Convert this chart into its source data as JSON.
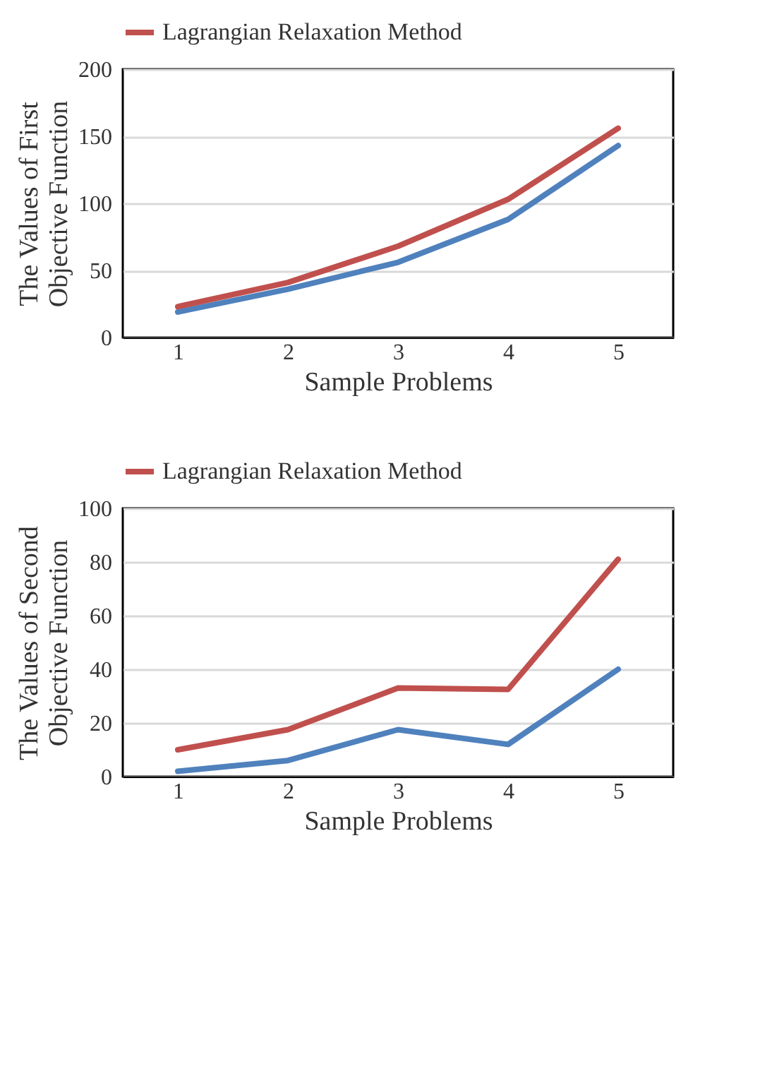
{
  "chart_data": [
    {
      "type": "line",
      "xlabel": "Sample Problems",
      "ylabel": "The Values of First Objective Function",
      "categories": [
        "1",
        "2",
        "3",
        "4",
        "5"
      ],
      "series": [
        {
          "color": "#4f81bd",
          "values": [
            19,
            36,
            56,
            88,
            143
          ]
        },
        {
          "name": "Lagrangian Relaxation Method",
          "color": "#c0504d",
          "values": [
            23,
            41,
            68,
            103,
            156
          ]
        }
      ],
      "ylim": [
        0,
        200
      ],
      "yticks": [
        0,
        50,
        100,
        150,
        200
      ],
      "grid": "y",
      "legend": "top",
      "line_style": "solid",
      "marker": "none"
    },
    {
      "type": "line",
      "xlabel": "Sample Problems",
      "ylabel": "The Values of Second Objective Function",
      "categories": [
        "1",
        "2",
        "3",
        "4",
        "5"
      ],
      "series": [
        {
          "color": "#4f81bd",
          "values": [
            2,
            6,
            17.5,
            12,
            40
          ]
        },
        {
          "name": "Lagrangian Relaxation Method",
          "color": "#c0504d",
          "values": [
            10,
            17.5,
            33,
            32.5,
            81
          ]
        }
      ],
      "ylim": [
        0,
        100
      ],
      "yticks": [
        0,
        20,
        40,
        60,
        80,
        100
      ],
      "grid": "y",
      "legend": "top",
      "line_style": "solid",
      "marker": "none"
    }
  ]
}
